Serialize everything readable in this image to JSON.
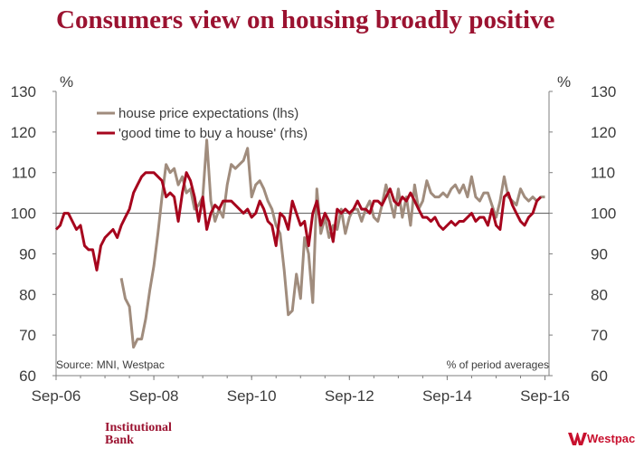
{
  "slide": {
    "title": "Consumers view on housing broadly positive",
    "footer_left_line1": "Institutional",
    "footer_left_line2": "Bank",
    "footer_right_logo": "Westpac"
  },
  "colors": {
    "series_lhs": "#a08c7d",
    "series_rhs": "#a6051d",
    "axis": "#7f7f7f",
    "text": "#3c3c3c"
  },
  "chart_data": {
    "type": "line",
    "left_axis_unit": "%",
    "right_axis_unit": "%",
    "y_range_lhs": [
      60,
      130
    ],
    "y_range_rhs": [
      60,
      130
    ],
    "y_ticks": [
      "60",
      "70",
      "80",
      "90",
      "100",
      "110",
      "120",
      "130"
    ],
    "x_range": [
      2006.667,
      2016.75
    ],
    "x_tick_labels": [
      "Sep-06",
      "Sep-08",
      "Sep-10",
      "Sep-12",
      "Sep-14",
      "Sep-16"
    ],
    "reference_line": 100,
    "grid": false,
    "legend_position": "top-left",
    "source_note": "Source: MNI, Westpac",
    "note_right": "% of period averages",
    "series": [
      {
        "name": "house price expectations (lhs)",
        "axis": "left",
        "points": [
          [
            2008.0,
            84
          ],
          [
            2008.083,
            79
          ],
          [
            2008.167,
            77
          ],
          [
            2008.25,
            67
          ],
          [
            2008.333,
            69
          ],
          [
            2008.417,
            69
          ],
          [
            2008.5,
            74
          ],
          [
            2008.583,
            81
          ],
          [
            2008.667,
            87
          ],
          [
            2008.75,
            95
          ],
          [
            2008.833,
            104
          ],
          [
            2008.917,
            112
          ],
          [
            2009.0,
            110
          ],
          [
            2009.083,
            111
          ],
          [
            2009.167,
            107
          ],
          [
            2009.25,
            109
          ],
          [
            2009.333,
            105
          ],
          [
            2009.417,
            106
          ],
          [
            2009.5,
            101
          ],
          [
            2009.583,
            102
          ],
          [
            2009.667,
            104
          ],
          [
            2009.75,
            118
          ],
          [
            2009.833,
            103
          ],
          [
            2009.917,
            98
          ],
          [
            2010.0,
            101
          ],
          [
            2010.083,
            99
          ],
          [
            2010.167,
            107
          ],
          [
            2010.25,
            112
          ],
          [
            2010.333,
            111
          ],
          [
            2010.417,
            112
          ],
          [
            2010.5,
            113
          ],
          [
            2010.583,
            116
          ],
          [
            2010.667,
            104
          ],
          [
            2010.75,
            107
          ],
          [
            2010.833,
            108
          ],
          [
            2010.917,
            106
          ],
          [
            2011.0,
            103
          ],
          [
            2011.083,
            101
          ],
          [
            2011.167,
            97
          ],
          [
            2011.25,
            95
          ],
          [
            2011.333,
            86
          ],
          [
            2011.417,
            75
          ],
          [
            2011.5,
            76
          ],
          [
            2011.583,
            85
          ],
          [
            2011.667,
            79
          ],
          [
            2011.75,
            94
          ],
          [
            2011.833,
            90
          ],
          [
            2011.917,
            78
          ],
          [
            2012.0,
            106
          ],
          [
            2012.083,
            95
          ],
          [
            2012.167,
            99
          ],
          [
            2012.25,
            94
          ],
          [
            2012.333,
            97
          ],
          [
            2012.417,
            96
          ],
          [
            2012.5,
            101
          ],
          [
            2012.583,
            95
          ],
          [
            2012.667,
            99
          ],
          [
            2012.75,
            101
          ],
          [
            2012.833,
            101
          ],
          [
            2012.917,
            98
          ],
          [
            2013.0,
            101
          ],
          [
            2013.083,
            103
          ],
          [
            2013.167,
            99
          ],
          [
            2013.25,
            98
          ],
          [
            2013.333,
            102
          ],
          [
            2013.417,
            107
          ],
          [
            2013.5,
            103
          ],
          [
            2013.583,
            99
          ],
          [
            2013.667,
            106
          ],
          [
            2013.75,
            99
          ],
          [
            2013.833,
            104
          ],
          [
            2013.917,
            97
          ],
          [
            2014.0,
            107
          ],
          [
            2014.083,
            101
          ],
          [
            2014.167,
            103
          ],
          [
            2014.25,
            108
          ],
          [
            2014.333,
            105
          ],
          [
            2014.417,
            104
          ],
          [
            2014.5,
            104
          ],
          [
            2014.583,
            105
          ],
          [
            2014.667,
            104
          ],
          [
            2014.75,
            106
          ],
          [
            2014.833,
            107
          ],
          [
            2014.917,
            105
          ],
          [
            2015.0,
            107
          ],
          [
            2015.083,
            104
          ],
          [
            2015.167,
            109
          ],
          [
            2015.25,
            104
          ],
          [
            2015.333,
            103
          ],
          [
            2015.417,
            105
          ],
          [
            2015.5,
            105
          ],
          [
            2015.583,
            102
          ],
          [
            2015.667,
            99
          ],
          [
            2015.75,
            103
          ],
          [
            2015.833,
            109
          ],
          [
            2015.917,
            104
          ],
          [
            2016.0,
            103
          ],
          [
            2016.083,
            102
          ],
          [
            2016.167,
            106
          ],
          [
            2016.25,
            104
          ],
          [
            2016.333,
            103
          ],
          [
            2016.417,
            104
          ],
          [
            2016.5,
            103
          ],
          [
            2016.583,
            104
          ],
          [
            2016.667,
            104
          ]
        ]
      },
      {
        "name": "'good time to buy a house' (rhs)",
        "axis": "right",
        "points": [
          [
            2006.667,
            96
          ],
          [
            2006.75,
            97
          ],
          [
            2006.833,
            100
          ],
          [
            2006.917,
            100
          ],
          [
            2007.0,
            98
          ],
          [
            2007.083,
            96
          ],
          [
            2007.167,
            97
          ],
          [
            2007.25,
            92
          ],
          [
            2007.333,
            91
          ],
          [
            2007.417,
            91
          ],
          [
            2007.5,
            86
          ],
          [
            2007.583,
            92
          ],
          [
            2007.667,
            94
          ],
          [
            2007.75,
            95
          ],
          [
            2007.833,
            96
          ],
          [
            2007.917,
            94
          ],
          [
            2008.0,
            97
          ],
          [
            2008.083,
            99
          ],
          [
            2008.167,
            101
          ],
          [
            2008.25,
            105
          ],
          [
            2008.333,
            107
          ],
          [
            2008.417,
            109
          ],
          [
            2008.5,
            110
          ],
          [
            2008.583,
            110
          ],
          [
            2008.667,
            110
          ],
          [
            2008.75,
            109
          ],
          [
            2008.833,
            108
          ],
          [
            2008.917,
            104
          ],
          [
            2009.0,
            105
          ],
          [
            2009.083,
            104
          ],
          [
            2009.167,
            98
          ],
          [
            2009.25,
            105
          ],
          [
            2009.333,
            110
          ],
          [
            2009.417,
            108
          ],
          [
            2009.5,
            104
          ],
          [
            2009.583,
            98
          ],
          [
            2009.667,
            104
          ],
          [
            2009.75,
            96
          ],
          [
            2009.833,
            100
          ],
          [
            2009.917,
            102
          ],
          [
            2010.0,
            101
          ],
          [
            2010.083,
            103
          ],
          [
            2010.167,
            103
          ],
          [
            2010.25,
            103
          ],
          [
            2010.333,
            102
          ],
          [
            2010.417,
            101
          ],
          [
            2010.5,
            100
          ],
          [
            2010.583,
            101
          ],
          [
            2010.667,
            99
          ],
          [
            2010.75,
            100
          ],
          [
            2010.833,
            103
          ],
          [
            2010.917,
            101
          ],
          [
            2011.0,
            98
          ],
          [
            2011.083,
            97
          ],
          [
            2011.167,
            92
          ],
          [
            2011.25,
            100
          ],
          [
            2011.333,
            99
          ],
          [
            2011.417,
            96
          ],
          [
            2011.5,
            103
          ],
          [
            2011.583,
            100
          ],
          [
            2011.667,
            97
          ],
          [
            2011.75,
            98
          ],
          [
            2011.833,
            92
          ],
          [
            2011.917,
            100
          ],
          [
            2012.0,
            103
          ],
          [
            2012.083,
            97
          ],
          [
            2012.167,
            100
          ],
          [
            2012.25,
            98
          ],
          [
            2012.333,
            93
          ],
          [
            2012.417,
            101
          ],
          [
            2012.5,
            100
          ],
          [
            2012.583,
            101
          ],
          [
            2012.667,
            100
          ],
          [
            2012.75,
            101
          ],
          [
            2012.833,
            103
          ],
          [
            2012.917,
            101
          ],
          [
            2013.0,
            101
          ],
          [
            2013.083,
            100
          ],
          [
            2013.167,
            103
          ],
          [
            2013.25,
            103
          ],
          [
            2013.333,
            102
          ],
          [
            2013.417,
            104
          ],
          [
            2013.5,
            106
          ],
          [
            2013.583,
            103
          ],
          [
            2013.667,
            102
          ],
          [
            2013.75,
            104
          ],
          [
            2013.833,
            103
          ],
          [
            2013.917,
            105
          ],
          [
            2014.0,
            103
          ],
          [
            2014.083,
            101
          ],
          [
            2014.167,
            99
          ],
          [
            2014.25,
            99
          ],
          [
            2014.333,
            98
          ],
          [
            2014.417,
            99
          ],
          [
            2014.5,
            97
          ],
          [
            2014.583,
            96
          ],
          [
            2014.667,
            97
          ],
          [
            2014.75,
            98
          ],
          [
            2014.833,
            97
          ],
          [
            2014.917,
            98
          ],
          [
            2015.0,
            98
          ],
          [
            2015.083,
            99
          ],
          [
            2015.167,
            100
          ],
          [
            2015.25,
            98
          ],
          [
            2015.333,
            99
          ],
          [
            2015.417,
            99
          ],
          [
            2015.5,
            97
          ],
          [
            2015.583,
            101
          ],
          [
            2015.667,
            97
          ],
          [
            2015.75,
            96
          ],
          [
            2015.833,
            104
          ],
          [
            2015.917,
            105
          ],
          [
            2016.0,
            102
          ],
          [
            2016.083,
            100
          ],
          [
            2016.167,
            98
          ],
          [
            2016.25,
            97
          ],
          [
            2016.333,
            99
          ],
          [
            2016.417,
            100
          ],
          [
            2016.5,
            103
          ],
          [
            2016.583,
            104
          ]
        ]
      }
    ]
  }
}
